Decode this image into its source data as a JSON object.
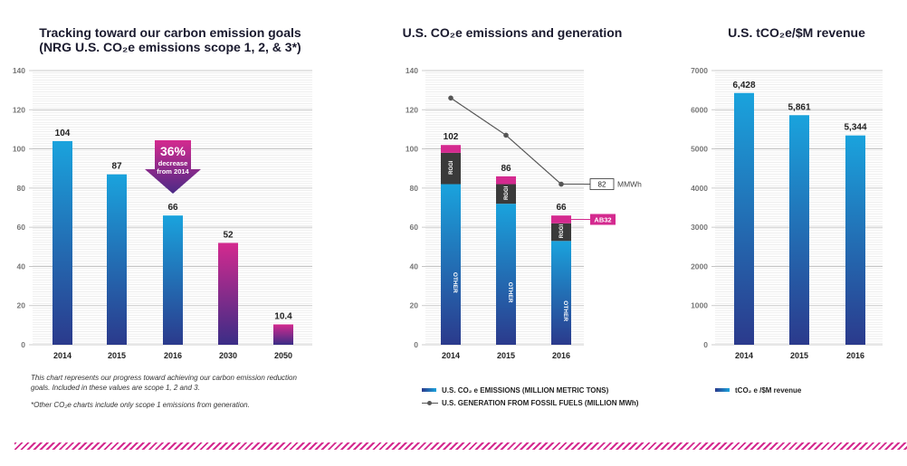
{
  "charts": [
    {
      "title_line1": "Tracking toward our carbon emission goals",
      "title_line2": "(NRG U.S. CO₂e emissions scope 1, 2, & 3*)",
      "annotation": {
        "pct": "36%",
        "line1": "decrease",
        "line2": "from 2014"
      },
      "note": {
        "line1": "This chart represents our progress toward achieving our carbon emission reduction",
        "line2": "goals. Included in these values are scope 1, 2 and 3.",
        "line3": "*Other CO₂e charts include only scope 1 emissions from generation."
      }
    },
    {
      "title": "U.S. CO₂e emissions and generation",
      "segment_labels": {
        "other": "OTHER",
        "rggi": "RGGI"
      },
      "callouts": {
        "mmwh_value": "82",
        "mmwh_unit": "MMWh",
        "ab32": "AB32"
      },
      "legend": {
        "bars": "U.S. CO₂ e EMISSIONS (MILLION METRIC TONS)",
        "line": "U.S. GENERATION FROM FOSSIL FUELS (MILLION MWh)"
      }
    },
    {
      "title": "U.S. tCO₂e/$M revenue",
      "legend": {
        "bars": "tCO₂ e /$M revenue"
      }
    }
  ],
  "chart_data": [
    {
      "type": "bar",
      "title": "Tracking toward our carbon emission goals (NRG U.S. CO₂e emissions scope 1, 2, & 3*)",
      "categories": [
        "2014",
        "2015",
        "2016",
        "2030",
        "2050"
      ],
      "values": [
        104,
        87,
        66,
        52,
        10.4
      ],
      "labels": [
        "104",
        "87",
        "66",
        "52",
        "10.4"
      ],
      "targets": [
        false,
        false,
        false,
        true,
        true
      ],
      "yticks": [
        0,
        20,
        40,
        60,
        80,
        100,
        120,
        140
      ],
      "ylim": [
        0,
        140
      ],
      "grid": true
    },
    {
      "type": "bar",
      "title": "U.S. CO₂e emissions and generation",
      "categories": [
        "2014",
        "2015",
        "2016"
      ],
      "stacked_series": [
        {
          "name": "OTHER",
          "values": [
            82,
            72,
            53
          ]
        },
        {
          "name": "RGGI",
          "values": [
            16,
            10,
            9
          ]
        },
        {
          "name": "AB32",
          "values": [
            4,
            4,
            4
          ]
        }
      ],
      "totals": [
        "102",
        "86",
        "66"
      ],
      "line_series": {
        "name": "U.S. GENERATION FROM FOSSIL FUELS (MILLION MWh)",
        "values": [
          126,
          107,
          82
        ]
      },
      "yticks": [
        0,
        20,
        40,
        60,
        80,
        100,
        120,
        140
      ],
      "ylim": [
        0,
        140
      ],
      "grid": true,
      "colors": {
        "bar_top": "#1aa3dd",
        "bar_bottom": "#2b3a8c",
        "rggi": "#3a3a3a",
        "ab32": "#d42a8f"
      }
    },
    {
      "type": "bar",
      "title": "U.S. tCO₂e/$M revenue",
      "categories": [
        "2014",
        "2015",
        "2016"
      ],
      "values": [
        6428,
        5861,
        5344
      ],
      "labels": [
        "6,428",
        "5,861",
        "5,344"
      ],
      "yticks": [
        0,
        1000,
        2000,
        3000,
        4000,
        5000,
        6000,
        7000
      ],
      "ylim": [
        0,
        7000
      ],
      "grid": true,
      "colors": {
        "bar_top": "#1aa3dd",
        "bar_bottom": "#2b3a8c"
      }
    }
  ]
}
